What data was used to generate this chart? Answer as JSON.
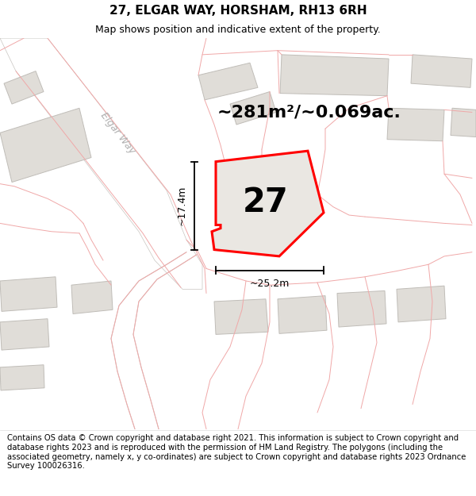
{
  "title": "27, ELGAR WAY, HORSHAM, RH13 6RH",
  "subtitle": "Map shows position and indicative extent of the property.",
  "area_label": "~281m²/~0.069ac.",
  "number_label": "27",
  "dim_width": "~25.2m",
  "dim_height": "~17.4m",
  "street_label": "Elgar Way",
  "footer": "Contains OS data © Crown copyright and database right 2021. This information is subject to Crown copyright and database rights 2023 and is reproduced with the permission of HM Land Registry. The polygons (including the associated geometry, namely x, y co-ordinates) are subject to Crown copyright and database rights 2023 Ordnance Survey 100026316.",
  "map_bg": "#f5f4f2",
  "road_fill": "#ffffff",
  "road_edge": "#c8c5c0",
  "building_fill": "#e0ddd8",
  "building_edge": "#c0bdb8",
  "plot_fill": "#eae7e2",
  "plot_edge": "#ff0000",
  "pink": "#f0a8a8",
  "dim_color": "#000000",
  "label_color": "#a0a0a0",
  "title_fontsize": 11,
  "subtitle_fontsize": 9,
  "footer_fontsize": 7.2,
  "area_fontsize": 16,
  "number_fontsize": 30,
  "dim_fontsize": 9,
  "street_fontsize": 9
}
